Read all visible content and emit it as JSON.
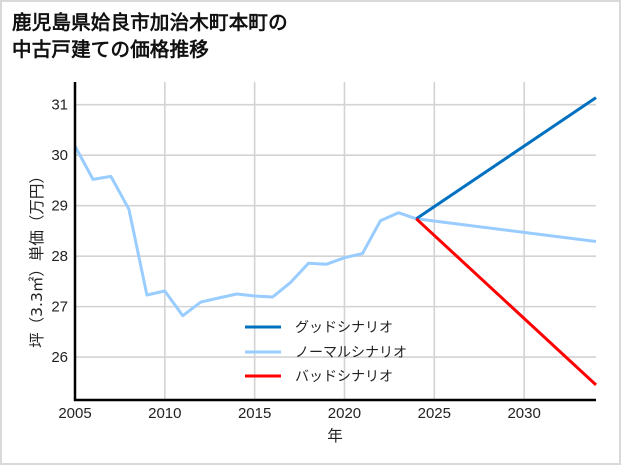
{
  "title_lines": [
    "鹿児島県姶良市加治木町本町の",
    "中古戸建ての価格推移"
  ],
  "chart_data": {
    "type": "line",
    "title": "鹿児島県姶良市加治木町本町の中古戸建ての価格推移",
    "xlabel": "年",
    "ylabel": "坪（3.3㎡）単価（万円）",
    "xlim": [
      2005,
      2034
    ],
    "ylim": [
      25.15,
      31.45
    ],
    "x_ticks": [
      2005,
      2010,
      2015,
      2020,
      2025,
      2030
    ],
    "y_ticks": [
      26,
      27,
      28,
      29,
      30,
      31
    ],
    "grid": true,
    "legend_position": "lower center (inside plot)",
    "series": [
      {
        "name": "グッドシナリオ",
        "color": "#0070C0",
        "x": [
          2024,
          2034
        ],
        "values": [
          28.74,
          31.14
        ]
      },
      {
        "name": "ノーマルシナリオ",
        "color": "#99CCFF",
        "x": [
          2005,
          2006,
          2007,
          2008,
          2009,
          2010,
          2011,
          2012,
          2013,
          2014,
          2015,
          2016,
          2017,
          2018,
          2019,
          2020,
          2021,
          2022,
          2023,
          2024,
          2034
        ],
        "values": [
          30.18,
          29.52,
          29.58,
          28.93,
          27.23,
          27.31,
          26.82,
          27.09,
          27.17,
          27.25,
          27.21,
          27.19,
          27.48,
          27.86,
          27.84,
          27.97,
          28.05,
          28.7,
          28.86,
          28.74,
          28.29
        ]
      },
      {
        "name": "バッドシナリオ",
        "color": "#FF0000",
        "x": [
          2024,
          2034
        ],
        "values": [
          28.74,
          25.45
        ]
      }
    ]
  },
  "colors": {
    "grid": "#d3d3d3",
    "axis": "#000000",
    "border": "#d9d9d9"
  }
}
